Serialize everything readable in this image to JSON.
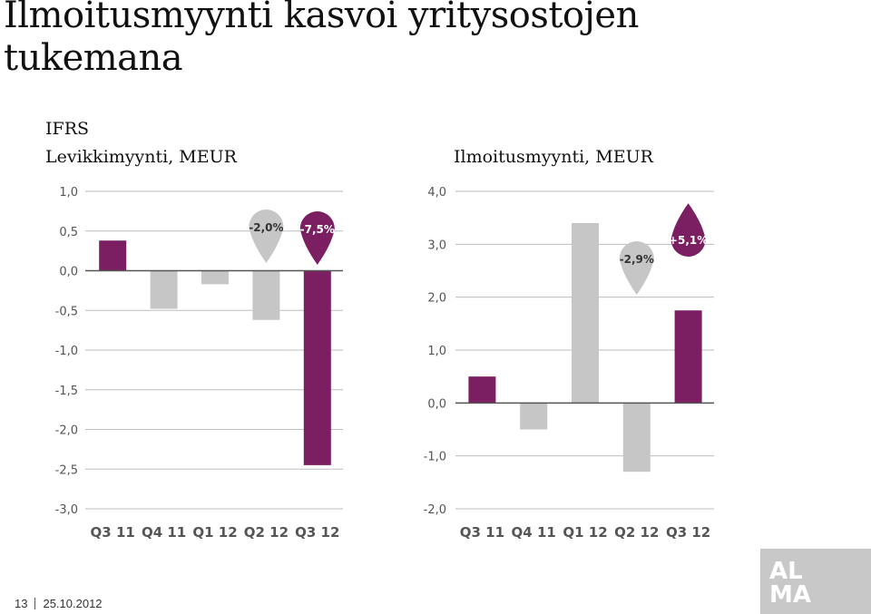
{
  "slide": {
    "title": "Ilmoitusmyynti kasvoi yritysostojen tukemana",
    "ifrs_label": "IFRS",
    "footer_page": "13",
    "footer_date": "25.10.2012",
    "logo_line1": "AL",
    "logo_line2": "MA"
  },
  "colors": {
    "highlight": "#7b1e62",
    "neutral": "#c6c6c6",
    "axis": "#555555",
    "grid": "#bdbdbd",
    "tick_text": "#555555"
  },
  "chart_data": [
    {
      "type": "bar",
      "title": "Levikkimyynti, MEUR",
      "categories": [
        "Q3 11",
        "Q4 11",
        "Q1 12",
        "Q2 12",
        "Q3 12"
      ],
      "values": [
        0.38,
        -0.48,
        -0.17,
        -0.62,
        -2.45
      ],
      "highlighted": [
        true,
        false,
        false,
        false,
        true
      ],
      "ylim": [
        -3.0,
        1.0
      ],
      "yticks": [
        1.0,
        0.5,
        0.0,
        -0.5,
        -1.0,
        -1.5,
        -2.0,
        -2.5,
        -3.0
      ],
      "ytick_labels": [
        "1,0",
        "0,5",
        "0,0",
        "-0,5",
        "-1,0",
        "-1,5",
        "-2,0",
        "-2,5",
        "-3,0"
      ],
      "grid": true,
      "annotations": [
        {
          "category": "Q2 12",
          "text": "-2,0%",
          "style": "neutral"
        },
        {
          "category": "Q3 12",
          "text": "-7,5%",
          "style": "highlight"
        }
      ]
    },
    {
      "type": "bar",
      "title": "Ilmoitusmyynti, MEUR",
      "categories": [
        "Q3 11",
        "Q4 11",
        "Q1 12",
        "Q2 12",
        "Q3 12"
      ],
      "values": [
        0.5,
        -0.5,
        3.4,
        -1.3,
        1.75
      ],
      "highlighted": [
        true,
        false,
        false,
        false,
        true
      ],
      "ylim": [
        -2.0,
        4.0
      ],
      "yticks": [
        4.0,
        3.0,
        2.0,
        1.0,
        0.0,
        -1.0,
        -2.0
      ],
      "ytick_labels": [
        "4,0",
        "3,0",
        "2,0",
        "1,0",
        "0,0",
        "-1,0",
        "-2,0"
      ],
      "grid": true,
      "annotations": [
        {
          "category": "Q2 12",
          "text": "-2,9%",
          "style": "neutral"
        },
        {
          "category": "Q3 12",
          "text": "+5,1%",
          "style": "highlight"
        }
      ]
    }
  ]
}
